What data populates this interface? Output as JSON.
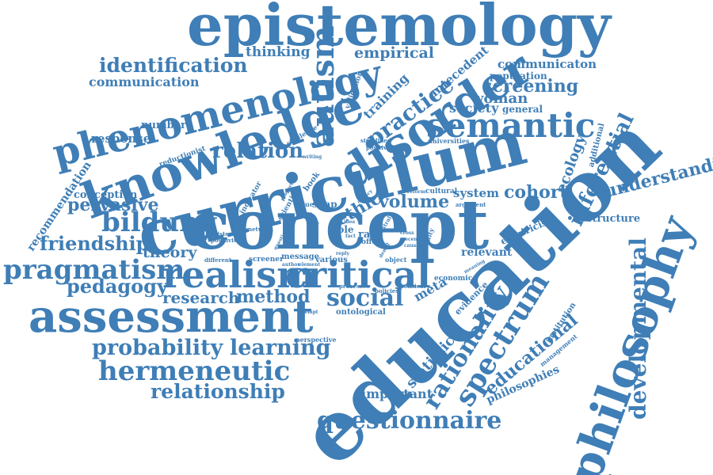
{
  "theme": {
    "text_color": "#3f7eb6",
    "background": "#ffffff"
  },
  "words": [
    "epistemology",
    "phenomenology",
    "knowledge",
    "curriculum",
    "concept",
    "education",
    "philosophy",
    "disorder",
    "autism",
    "semantic",
    "assessment",
    "realism",
    "critical",
    "pragmatism",
    "bildung",
    "identification",
    "communication",
    "thinking",
    "empirical",
    "validation",
    "training",
    "practice",
    "antecedent",
    "communicaton",
    "population",
    "screening",
    "woman",
    "society",
    "general",
    "number",
    "response",
    "relation",
    "challenge",
    "writing",
    "simplified",
    "positivism",
    "universities",
    "reductionist",
    "recommendation",
    "conception",
    "pervasive",
    "friendship",
    "theory",
    "pedagogy",
    "research",
    "method",
    "social",
    "probability",
    "learning",
    "hermeneutic",
    "relationship",
    "questionnaire",
    "important",
    "statistical",
    "rationality",
    "spectrum",
    "educational",
    "philosophies",
    "developmental",
    "understanding",
    "inferential",
    "ecology",
    "additional",
    "cohort",
    "system",
    "structure",
    "empiricist",
    "argument",
    "reform",
    "cultural",
    "volume",
    "ethic",
    "snap",
    "value",
    "book",
    "scientific",
    "properties",
    "indicator",
    "network",
    "epistemic",
    "positivist",
    "different",
    "screener",
    "message",
    "question",
    "author",
    "element",
    "various",
    "realist",
    "world",
    "role",
    "race",
    "offer",
    "cross",
    "recent",
    "causal",
    "validity",
    "relevant",
    "meaning",
    "denial",
    "object",
    "reply",
    "economic",
    "political",
    "meta",
    "processes",
    "policies",
    "evidence",
    "ontological",
    "attempt",
    "perspective",
    "institution",
    "management",
    "idea",
    "agency",
    "central",
    "fact"
  ]
}
